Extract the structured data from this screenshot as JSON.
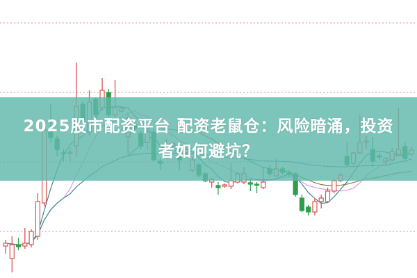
{
  "title": {
    "line1": "2025股市配资平台 配资老鼠仓：风险暗涌，投资",
    "line2": "者如何避坑？"
  },
  "colors": {
    "banner": "#60b8ac",
    "up": "#d9534f",
    "down": "#2e9e4a",
    "grid": "#d98c8c",
    "ma": [
      "#2b7f8f",
      "#e090e0",
      "#6b7d2c",
      "#3a8ab0"
    ]
  },
  "chart_data": {
    "type": "candlestick",
    "grid": true,
    "grid_levels": [
      91.75,
      66.75,
      41.75,
      16.75
    ],
    "ylim": [
      0,
      100
    ],
    "moving_averages": [
      5,
      10,
      20,
      60
    ],
    "candles": [
      [
        11.5,
        12.5,
        13.75,
        8.75
      ],
      [
        7,
        12,
        15,
        2
      ],
      [
        12,
        11.25,
        14.5,
        10
      ],
      [
        11.5,
        12.5,
        18,
        10.5
      ],
      [
        12,
        16.75,
        17.5,
        11
      ],
      [
        15,
        27.5,
        30.5,
        13.75
      ],
      [
        27,
        53.25,
        54.25,
        25.75
      ],
      [
        53.5,
        50.5,
        62.5,
        48.75
      ],
      [
        50,
        46.25,
        51.25,
        43.75
      ],
      [
        45,
        44.75,
        46.25,
        42
      ],
      [
        45,
        45.25,
        47,
        42
      ],
      [
        47.5,
        61.75,
        77.5,
        43.75
      ],
      [
        62.5,
        57,
        63.75,
        56.25
      ],
      [
        52.5,
        63.25,
        67.5,
        51.25
      ],
      [
        64.25,
        58.75,
        65,
        58
      ],
      [
        61.25,
        67.5,
        72,
        60
      ],
      [
        66.75,
        58.75,
        68,
        58
      ],
      [
        58.75,
        61.25,
        71.25,
        57.5
      ],
      [
        60,
        61,
        62,
        59.5
      ],
      [
        50.75,
        57.5,
        59.5,
        44.5
      ],
      [
        55,
        53.75,
        56.25,
        52.5
      ],
      [
        52,
        47.5,
        53,
        46.25
      ],
      [
        48.75,
        52.5,
        53.75,
        46.25
      ],
      [
        52.5,
        42.5,
        53.75,
        42
      ],
      [
        42,
        41.25,
        43,
        38.75
      ],
      [
        46.25,
        48,
        50,
        45
      ],
      [
        47.5,
        48.25,
        48.75,
        47
      ],
      [
        43.75,
        42.5,
        46.25,
        38.75
      ],
      [
        45,
        46.25,
        47.5,
        44.5
      ],
      [
        38.75,
        42.5,
        43.75,
        38
      ],
      [
        40.75,
        37,
        41.25,
        36.25
      ],
      [
        37.5,
        35,
        38,
        34.5
      ],
      [
        34.5,
        35.5,
        36,
        32.5
      ],
      [
        33.25,
        32.5,
        34.5,
        30
      ],
      [
        33,
        33.5,
        34,
        32.5
      ],
      [
        33,
        35,
        41.25,
        32
      ],
      [
        34.5,
        37.5,
        38,
        34
      ],
      [
        34.5,
        37.5,
        40,
        33.75
      ],
      [
        34.25,
        33.75,
        35.5,
        31.25
      ],
      [
        33.75,
        33.5,
        34.5,
        30.5
      ],
      [
        32.5,
        34.5,
        40,
        32
      ],
      [
        39.25,
        37.5,
        40.5,
        36.25
      ],
      [
        36.75,
        39.25,
        43,
        36.25
      ],
      [
        39.25,
        38,
        40,
        37
      ],
      [
        37.75,
        37.5,
        38.75,
        36.5
      ],
      [
        37.5,
        30,
        38,
        29.25
      ],
      [
        28.75,
        24.25,
        30,
        23.75
      ],
      [
        25.5,
        23.75,
        26.25,
        22.5
      ],
      [
        23.75,
        27.5,
        28.75,
        22.5
      ],
      [
        27.5,
        28.75,
        30,
        25
      ],
      [
        27.5,
        31.25,
        32.5,
        27
      ],
      [
        31.25,
        35,
        35.5,
        30.5
      ],
      [
        35,
        37,
        38,
        34.5
      ],
      [
        43.75,
        40.75,
        48.75,
        40
      ],
      [
        41.25,
        45,
        45.5,
        40.5
      ],
      [
        45,
        48.75,
        58.75,
        44.5
      ],
      [
        49,
        49.25,
        51.25,
        46.5
      ],
      [
        46.25,
        42,
        50.75,
        40
      ],
      [
        44,
        43.5,
        45,
        42.5
      ],
      [
        42,
        43,
        43.5,
        40.75
      ],
      [
        42.5,
        45.5,
        46.75,
        42
      ],
      [
        44.5,
        46.25,
        61.25,
        43.75
      ],
      [
        47.25,
        43,
        49,
        42.5
      ],
      [
        44.5,
        46,
        47,
        43.75
      ]
    ]
  }
}
